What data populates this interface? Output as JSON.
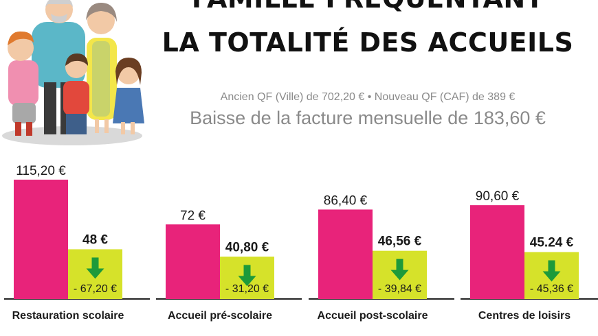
{
  "header": {
    "title_line1": "FAMILLE FRÉQUENTANT",
    "title_line2": "LA TOTALITÉ DES ACCUEILS",
    "subtitle": "Ancien QF (Ville) de 702,20 € • Nouveau QF (CAF) de 389 €",
    "headline": "Baisse de la facture mensuelle de 183,60 €"
  },
  "colors": {
    "old_bar": "#e8237a",
    "new_bar": "#d6e22a",
    "arrow": "#1d9a3a",
    "baseline": "#222222"
  },
  "chart_data": {
    "type": "bar",
    "categories": [
      "Restauration scolaire",
      "Accueil pré-scolaire",
      "Accueil post-scolaire",
      "Centres de loisirs"
    ],
    "series": [
      {
        "values": [
          115.2,
          72,
          86.4,
          90.6
        ],
        "labels": [
          "115,20 €",
          "72 €",
          "86,40 €",
          "90,60 €"
        ]
      },
      {
        "values": [
          48,
          40.8,
          46.56,
          45.24
        ],
        "labels": [
          "48 €",
          "40,80 €",
          "46,56 €",
          "45.24 €"
        ]
      }
    ],
    "differences": [
      "- 67,20 €",
      "- 31,20 €",
      "- 39,84 €",
      "- 45,36 €"
    ],
    "ylim": [
      0,
      115.2
    ],
    "grid": false
  }
}
